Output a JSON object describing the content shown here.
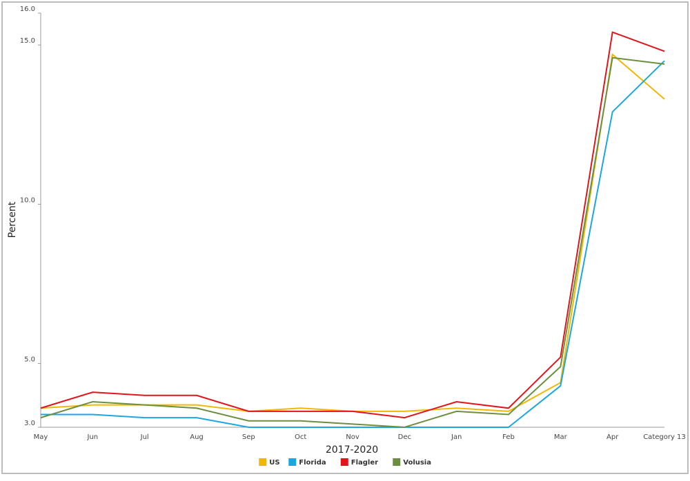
{
  "chart_data": {
    "type": "line",
    "x_label": "2017-2020",
    "y_label": "Percent",
    "categories": [
      "May",
      "Jun",
      "Jul",
      "Aug",
      "Sep",
      "Oct",
      "Nov",
      "Dec",
      "Jan",
      "Feb",
      "Mar",
      "Apr",
      "Category 13"
    ],
    "series": [
      {
        "name": "US",
        "color": "#f2b705",
        "values": [
          3.6,
          3.7,
          3.7,
          3.7,
          3.5,
          3.6,
          3.5,
          3.5,
          3.6,
          3.5,
          4.4,
          14.7,
          13.3
        ]
      },
      {
        "name": "Florida",
        "color": "#1ba6e0",
        "values": [
          3.4,
          3.4,
          3.3,
          3.3,
          3.0,
          3.0,
          3.0,
          3.0,
          3.0,
          3.0,
          4.3,
          12.9,
          14.5
        ]
      },
      {
        "name": "Flagler",
        "color": "#e0141a",
        "values": [
          3.6,
          4.1,
          4.0,
          4.0,
          3.5,
          3.5,
          3.5,
          3.3,
          3.8,
          3.6,
          5.2,
          15.4,
          14.8
        ]
      },
      {
        "name": "Volusia",
        "color": "#6b8f3e",
        "values": [
          3.3,
          3.8,
          3.7,
          3.6,
          3.2,
          3.2,
          3.1,
          3.0,
          3.5,
          3.4,
          4.9,
          14.6,
          14.4
        ]
      }
    ],
    "ylim": [
      3,
      16
    ],
    "yticks": [
      {
        "value": 3,
        "label": "3.0"
      },
      {
        "value": 5,
        "label": "5.0"
      },
      {
        "value": 10,
        "label": "10.0"
      },
      {
        "value": 15,
        "label": "15.0"
      },
      {
        "value": 16,
        "label": "16.0"
      }
    ],
    "legend": "bottom"
  }
}
